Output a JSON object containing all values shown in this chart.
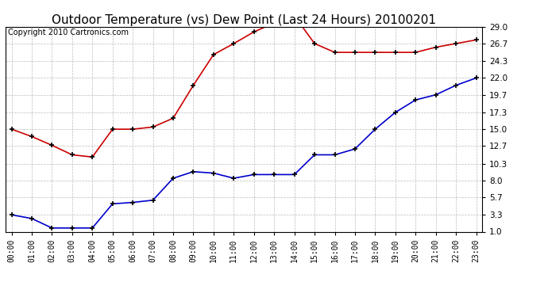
{
  "title": "Outdoor Temperature (vs) Dew Point (Last 24 Hours) 20100201",
  "copyright": "Copyright 2010 Cartronics.com",
  "hours": [
    "00:00",
    "01:00",
    "02:00",
    "03:00",
    "04:00",
    "05:00",
    "06:00",
    "07:00",
    "08:00",
    "09:00",
    "10:00",
    "11:00",
    "12:00",
    "13:00",
    "14:00",
    "15:00",
    "16:00",
    "17:00",
    "18:00",
    "19:00",
    "20:00",
    "21:00",
    "22:00",
    "23:00"
  ],
  "temp": [
    15.0,
    14.0,
    12.8,
    11.5,
    11.2,
    15.0,
    15.0,
    15.3,
    16.5,
    21.0,
    25.2,
    26.7,
    28.3,
    29.5,
    30.5,
    26.7,
    25.5,
    25.5,
    25.5,
    25.5,
    25.5,
    26.2,
    26.7,
    27.2
  ],
  "dew": [
    3.3,
    2.8,
    1.5,
    1.5,
    1.5,
    4.8,
    5.0,
    5.3,
    8.3,
    9.2,
    9.0,
    8.3,
    8.8,
    8.8,
    8.8,
    11.5,
    11.5,
    12.3,
    15.0,
    17.3,
    19.0,
    19.7,
    21.0,
    22.0
  ],
  "yticks": [
    1.0,
    3.3,
    5.7,
    8.0,
    10.3,
    12.7,
    15.0,
    17.3,
    19.7,
    22.0,
    24.3,
    26.7,
    29.0
  ],
  "ymin": 1.0,
  "ymax": 29.0,
  "temp_color": "#cc0000",
  "dew_color": "#0000cc",
  "bg_color": "#ffffff",
  "grid_color": "#bbbbbb",
  "title_fontsize": 11,
  "copyright_fontsize": 7,
  "tick_fontsize": 7,
  "ytick_fontsize": 7.5
}
